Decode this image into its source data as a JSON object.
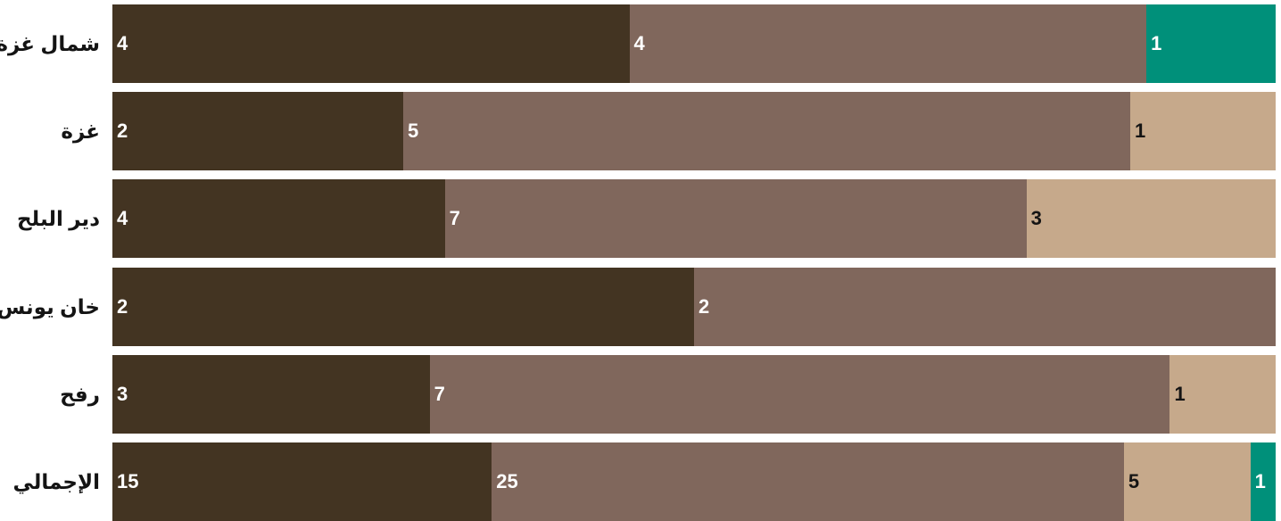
{
  "chart_data": {
    "type": "bar",
    "orientation": "horizontal",
    "stacked": true,
    "normalized": true,
    "categories": [
      "شمال غزة",
      "غزة",
      "دير البلح",
      "خان يونس",
      "رفح",
      "الإجمالي"
    ],
    "series": [
      {
        "values": [
          4,
          2,
          4,
          2,
          3,
          15
        ],
        "color": "#433422",
        "label_color": "#ffffff"
      },
      {
        "values": [
          4,
          5,
          7,
          2,
          7,
          25
        ],
        "color": "#80675c",
        "label_color": "#ffffff"
      },
      {
        "values": [
          0,
          1,
          3,
          0,
          1,
          5
        ],
        "color": "#c6a98b",
        "label_color": "#141414"
      },
      {
        "values": [
          1,
          0,
          0,
          0,
          0,
          1
        ],
        "color": "#00907a",
        "label_color": "#ffffff"
      }
    ],
    "title": "",
    "xlabel": "",
    "ylabel": "",
    "grid": false,
    "legend": "none"
  }
}
